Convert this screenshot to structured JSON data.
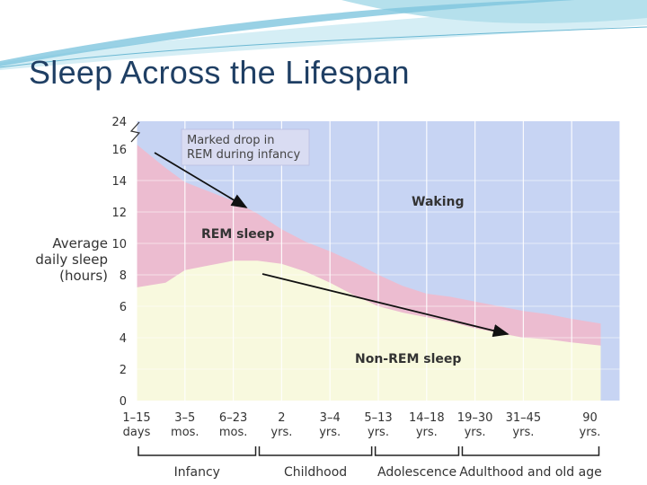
{
  "slide": {
    "title": "Sleep Across the Lifespan"
  },
  "colors": {
    "title": "#1f3f64",
    "waking": "#c7d4f3",
    "rem": "#ecbcd0",
    "nonrem": "#f8f9de",
    "grid": "#ffffff",
    "text": "#333333"
  },
  "chart_data": {
    "type": "area",
    "title": "Sleep Across the Lifespan",
    "ylabel": [
      "Average",
      "daily sleep",
      "(hours)"
    ],
    "ylim": [
      0,
      24
    ],
    "y_ticks": [
      "0",
      "2",
      "4",
      "6",
      "8",
      "10",
      "12",
      "14",
      "16",
      "24"
    ],
    "y_axis_break": {
      "from": 16,
      "to": 24
    },
    "x_categories": [
      [
        "1–15",
        "days"
      ],
      [
        "3–5",
        "mos."
      ],
      [
        "6–23",
        "mos."
      ],
      [
        "2",
        "yrs."
      ],
      [
        "3–4",
        "yrs."
      ],
      [
        "5–13",
        "yrs."
      ],
      [
        "14–18",
        "yrs."
      ],
      [
        "19–30",
        "yrs."
      ],
      [
        "31–45",
        "yrs."
      ],
      [
        "90",
        "yrs."
      ]
    ],
    "series": [
      {
        "name": "Non-REM sleep",
        "label": "Non-REM sleep",
        "x": [
          0,
          0.6,
          1,
          1.5,
          2,
          2.5,
          3,
          3.5,
          4,
          4.5,
          5,
          5.5,
          6,
          6.5,
          7,
          7.5,
          8,
          8.5,
          9,
          9.6
        ],
        "values": [
          7.2,
          7.5,
          8.3,
          8.6,
          8.9,
          8.9,
          8.7,
          8.2,
          7.5,
          6.7,
          6.0,
          5.6,
          5.3,
          5.0,
          4.6,
          4.3,
          4.0,
          3.9,
          3.7,
          3.5
        ]
      },
      {
        "name": "REM sleep",
        "label": "REM sleep",
        "x": [
          0,
          0.6,
          1,
          1.5,
          2,
          2.5,
          3,
          3.5,
          4,
          4.5,
          5,
          5.5,
          6,
          6.5,
          7,
          7.5,
          8,
          8.5,
          9,
          9.6
        ],
        "top": [
          16.3,
          14.8,
          13.9,
          13.3,
          12.7,
          11.9,
          10.9,
          10.1,
          9.5,
          8.8,
          8.0,
          7.3,
          6.8,
          6.6,
          6.3,
          6.0,
          5.7,
          5.5,
          5.2,
          4.9
        ]
      },
      {
        "name": "Waking",
        "label": "Waking"
      }
    ],
    "annotations": [
      {
        "id": "rem-drop",
        "lines": [
          "Marked drop in",
          "REM during infancy"
        ]
      }
    ],
    "groups": [
      {
        "label": "Infancy",
        "from": 0,
        "to": 3
      },
      {
        "label": "Childhood",
        "from": 3,
        "to": 5
      },
      {
        "label": "Adolescence",
        "from": 6,
        "to": 6
      },
      {
        "label": "Adulthood and old age",
        "from": 7,
        "to": 9
      }
    ]
  }
}
